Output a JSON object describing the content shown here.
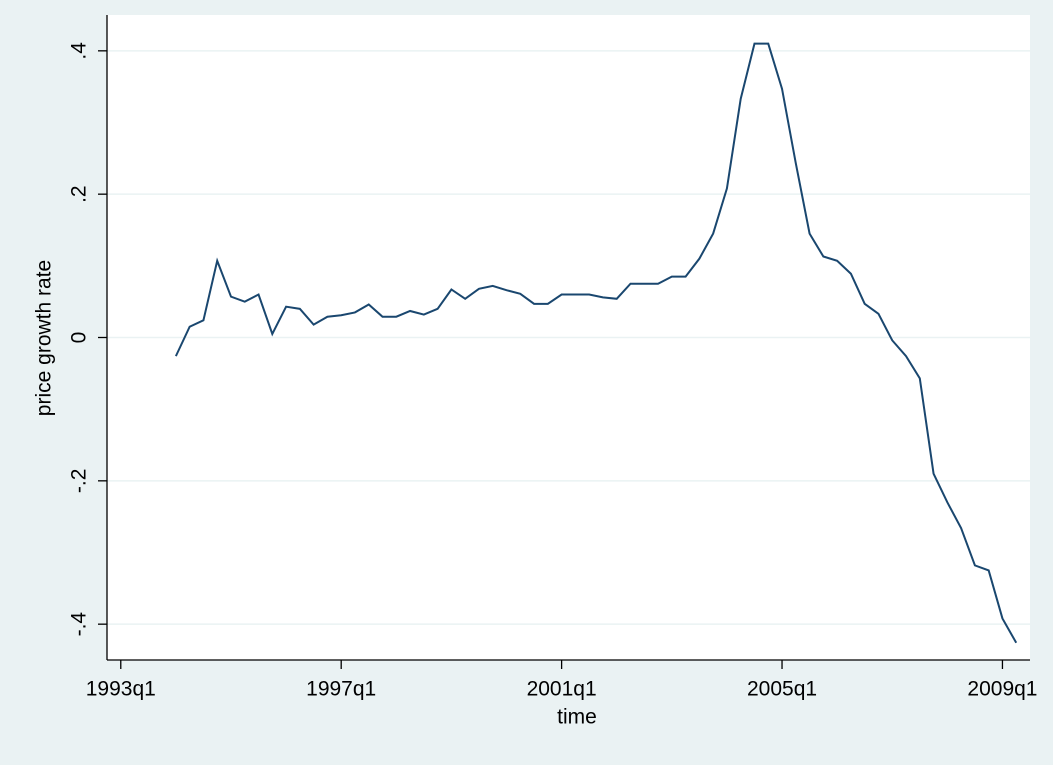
{
  "chart_data": {
    "type": "line",
    "xlabel": "time",
    "ylabel": "price growth rate",
    "x": [
      "1994q1",
      "1994q2",
      "1994q3",
      "1994q4",
      "1995q1",
      "1995q2",
      "1995q3",
      "1995q4",
      "1996q1",
      "1996q2",
      "1996q3",
      "1996q4",
      "1997q1",
      "1997q2",
      "1997q3",
      "1997q4",
      "1998q1",
      "1998q2",
      "1998q3",
      "1998q4",
      "1999q1",
      "1999q2",
      "1999q3",
      "1999q4",
      "2000q1",
      "2000q2",
      "2000q3",
      "2000q4",
      "2001q1",
      "2001q2",
      "2001q3",
      "2001q4",
      "2002q1",
      "2002q2",
      "2002q3",
      "2002q4",
      "2003q1",
      "2003q2",
      "2003q3",
      "2003q4",
      "2004q1",
      "2004q2",
      "2004q3",
      "2004q4",
      "2005q1",
      "2005q2",
      "2005q3",
      "2005q4",
      "2006q1",
      "2006q2",
      "2006q3",
      "2006q4",
      "2007q1",
      "2007q2",
      "2007q3",
      "2007q4",
      "2008q1",
      "2008q2",
      "2008q3",
      "2008q4",
      "2009q1",
      "2009q2"
    ],
    "series": [
      {
        "color": "#1a476f",
        "values": [
          -0.026,
          0.015,
          0.024,
          0.107,
          0.057,
          0.05,
          0.06,
          0.005,
          0.043,
          0.04,
          0.018,
          0.029,
          0.031,
          0.035,
          0.046,
          0.029,
          0.029,
          0.037,
          0.032,
          0.04,
          0.067,
          0.054,
          0.068,
          0.072,
          0.066,
          0.061,
          0.047,
          0.047,
          0.06,
          0.06,
          0.06,
          0.056,
          0.054,
          0.075,
          0.075,
          0.075,
          0.085,
          0.085,
          0.11,
          0.145,
          0.208,
          0.333,
          0.41,
          0.41,
          0.347,
          0.243,
          0.145,
          0.113,
          0.107,
          0.089,
          0.047,
          0.033,
          -0.004,
          -0.026,
          -0.057,
          -0.19,
          -0.23,
          -0.266,
          -0.318,
          -0.325,
          -0.392,
          -0.426
        ]
      }
    ],
    "xlim": [
      "1992q4",
      "2009q3"
    ],
    "xticks": [
      "1993q1",
      "1997q1",
      "2001q1",
      "2005q1",
      "2009q1"
    ],
    "ylim": [
      -0.45,
      0.45
    ],
    "yticks": [
      {
        "value": -0.4,
        "label": "-.4"
      },
      {
        "value": -0.2,
        "label": "-.2"
      },
      0,
      {
        "value": 0.2,
        "label": ".2"
      },
      {
        "value": 0.4,
        "label": ".4"
      }
    ],
    "grid": true
  }
}
